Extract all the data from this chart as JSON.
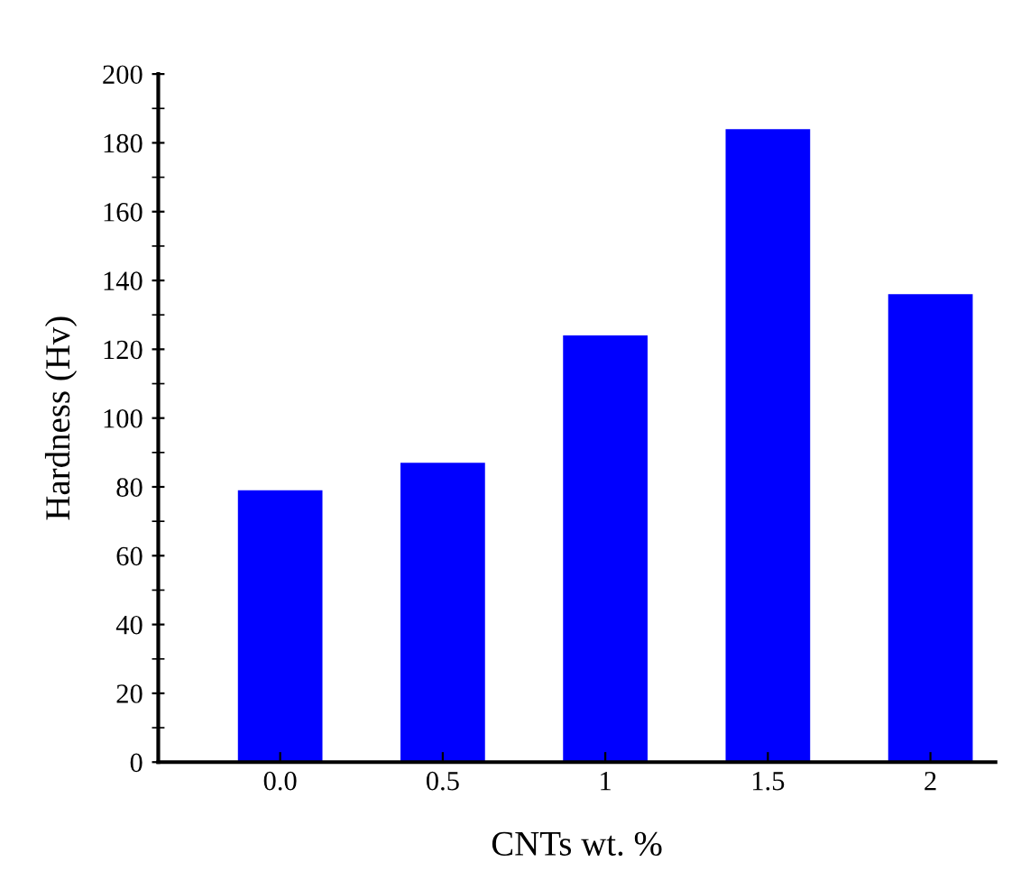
{
  "chart_data": {
    "type": "bar",
    "xlabel": "CNTs wt. %",
    "ylabel": "Hardness (Hv)",
    "categories": [
      "0.0",
      "0.5",
      "1",
      "1.5",
      "2"
    ],
    "series": [
      {
        "color": "#0000ff",
        "values": [
          79,
          87,
          124,
          184,
          136
        ]
      }
    ],
    "ylim": [
      0,
      200
    ],
    "yticks": [
      0,
      20,
      40,
      60,
      80,
      100,
      120,
      140,
      160,
      180,
      200
    ],
    "grid": false,
    "legend": false
  }
}
